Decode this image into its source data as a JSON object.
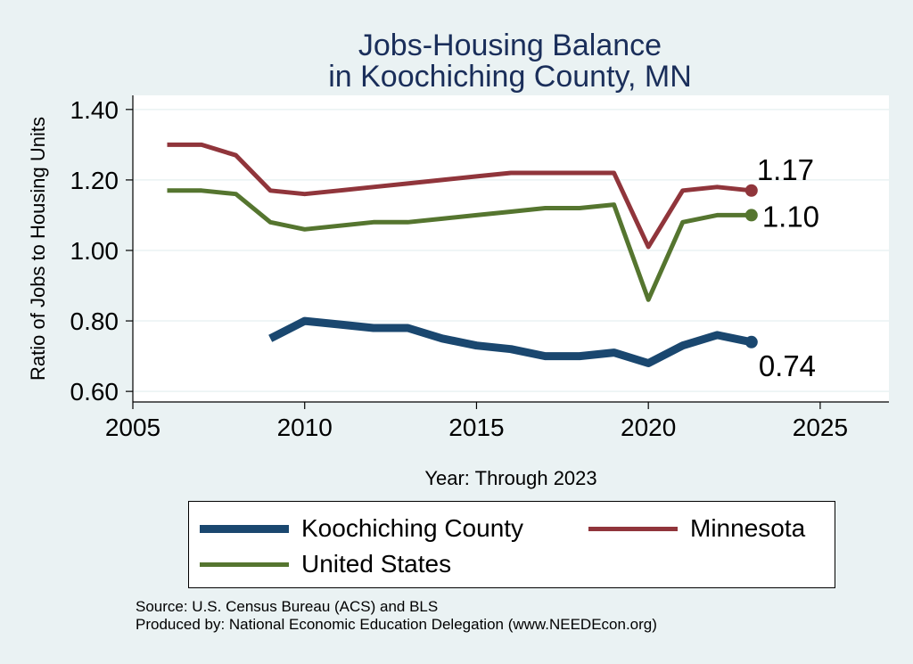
{
  "title_lines": [
    "Jobs-Housing Balance",
    "in Koochiching County, MN"
  ],
  "notes": {
    "source": "Source: U.S. Census Bureau (ACS) and BLS",
    "produced_by": "Produced by: National Economic Education Delegation (www.NEEDEcon.org)"
  },
  "colors": {
    "background": "#eaf2f3",
    "koochiching": "#1a476f",
    "minnesota": "#90353b",
    "united_states": "#55752f",
    "title": "#1a2e5a"
  },
  "chart_data": {
    "type": "line",
    "xlabel": "Year: Through 2023",
    "ylabel": "Ratio of Jobs to Housing Units",
    "xlim": [
      2005,
      2027
    ],
    "ylim": [
      0.57,
      1.44
    ],
    "xticks": [
      2005,
      2010,
      2015,
      2020,
      2025
    ],
    "yticks": [
      0.6,
      0.8,
      1.0,
      1.2,
      1.4
    ],
    "ytick_labels": [
      "0.60",
      "0.80",
      "1.00",
      "1.20",
      "1.40"
    ],
    "grid": true,
    "legend_position": "bottom",
    "series": [
      {
        "name": "Koochiching County",
        "key": "koochiching",
        "x": [
          2009,
          2010,
          2011,
          2012,
          2013,
          2014,
          2015,
          2016,
          2017,
          2018,
          2019,
          2020,
          2021,
          2022,
          2023
        ],
        "y": [
          0.75,
          0.8,
          0.79,
          0.78,
          0.78,
          0.75,
          0.73,
          0.72,
          0.7,
          0.7,
          0.71,
          0.68,
          0.73,
          0.76,
          0.74
        ],
        "end_label": "0.74"
      },
      {
        "name": "Minnesota",
        "key": "minnesota",
        "x": [
          2006,
          2007,
          2008,
          2009,
          2010,
          2011,
          2012,
          2013,
          2014,
          2015,
          2016,
          2017,
          2018,
          2019,
          2020,
          2021,
          2022,
          2023
        ],
        "y": [
          1.3,
          1.3,
          1.27,
          1.17,
          1.16,
          1.17,
          1.18,
          1.19,
          1.2,
          1.21,
          1.22,
          1.22,
          1.22,
          1.22,
          1.01,
          1.17,
          1.18,
          1.17
        ],
        "end_label": "1.17"
      },
      {
        "name": "United States",
        "key": "united_states",
        "x": [
          2006,
          2007,
          2008,
          2009,
          2010,
          2011,
          2012,
          2013,
          2014,
          2015,
          2016,
          2017,
          2018,
          2019,
          2020,
          2021,
          2022,
          2023
        ],
        "y": [
          1.17,
          1.17,
          1.16,
          1.08,
          1.06,
          1.07,
          1.08,
          1.08,
          1.09,
          1.1,
          1.11,
          1.12,
          1.12,
          1.13,
          0.86,
          1.08,
          1.1,
          1.1
        ],
        "end_label": "1.10"
      }
    ]
  }
}
